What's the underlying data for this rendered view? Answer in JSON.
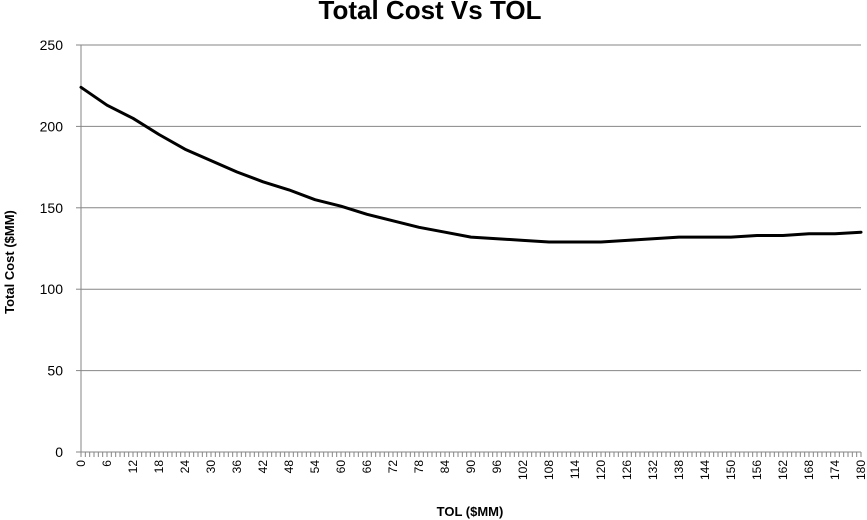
{
  "chart_data": {
    "type": "line",
    "title": "Total Cost Vs TOL",
    "xlabel": "TOL ($MM)",
    "ylabel": "Total Cost ($MM)",
    "xlim": [
      0,
      180
    ],
    "ylim": [
      0,
      250
    ],
    "y_ticks": [
      "0",
      "50",
      "100",
      "150",
      "200",
      "250"
    ],
    "x_ticks": [
      "0",
      "6",
      "12",
      "18",
      "24",
      "30",
      "36",
      "42",
      "48",
      "54",
      "60",
      "66",
      "72",
      "78",
      "84",
      "90",
      "96",
      "102",
      "108",
      "114",
      "120",
      "126",
      "132",
      "138",
      "144",
      "150",
      "156",
      "162",
      "168",
      "174",
      "180"
    ],
    "grid": "horizontal",
    "line_color": "#000000",
    "grid_color": "#868686",
    "series": [
      {
        "x": [
          0,
          6,
          12,
          18,
          24,
          30,
          36,
          42,
          48,
          54,
          60,
          66,
          72,
          78,
          84,
          90,
          96,
          102,
          108,
          114,
          120,
          126,
          132,
          138,
          144,
          150,
          156,
          162,
          168,
          174,
          180
        ],
        "values": [
          224,
          213,
          205,
          195,
          186,
          179,
          172,
          166,
          161,
          155,
          151,
          146,
          142,
          138,
          135,
          132,
          131,
          130,
          129,
          129,
          129,
          130,
          131,
          132,
          132,
          132,
          133,
          133,
          134,
          134,
          135
        ]
      }
    ]
  }
}
